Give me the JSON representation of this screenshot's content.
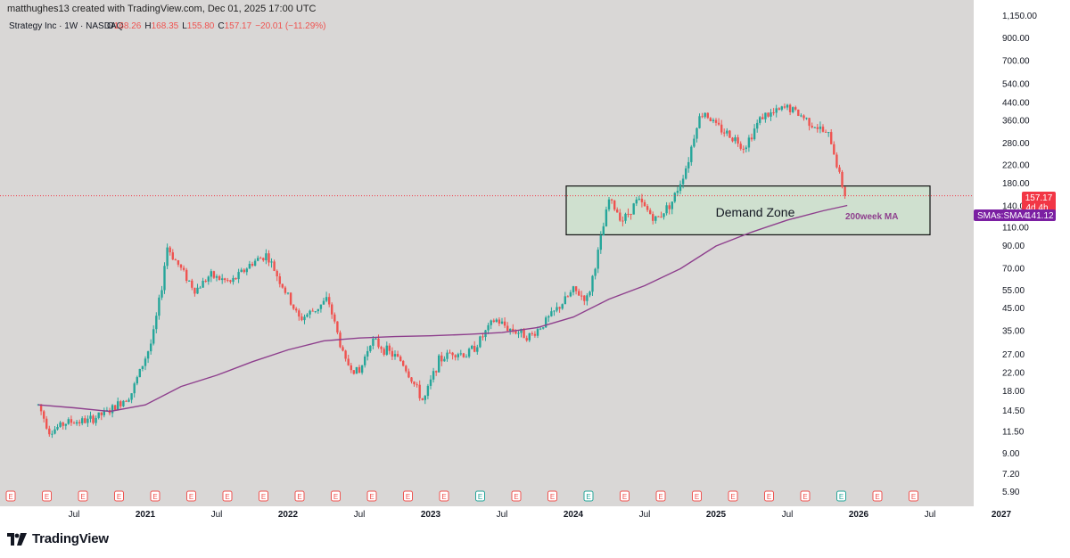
{
  "attribution": "matthughes13 created with TradingView.com, Dec 01, 2025 17:00 UTC",
  "footer": {
    "brand": "TradingView"
  },
  "colors": {
    "background": "#ffffff",
    "plot_bg": "#d9d7d6",
    "up": "#26a69a",
    "down": "#ef5350",
    "sma": "#8e3f8d",
    "last_price_bg": "#f23645",
    "sma_badge_bg": "#7b1fa2",
    "zone_fill": "#cfe0cf",
    "zone_border": "#111111"
  },
  "legend": {
    "title": "Strategy Inc · 1W · NASDAQ",
    "o_label": "O",
    "o": "168.26",
    "h_label": "H",
    "h": "168.35",
    "l_label": "L",
    "l": "155.80",
    "c_label": "C",
    "c": "157.17",
    "change": "−20.01 (−11.29%)"
  },
  "badges": {
    "last_price": "157.17",
    "countdown": "4d 4h",
    "sma_label": "SMAs:SMA4",
    "sma_value": "141.12"
  },
  "annotations": {
    "zone_label": "Demand Zone",
    "ma_label": "200week MA"
  },
  "chart_data": {
    "type": "candlestick",
    "symbol": "Strategy Inc",
    "interval": "1W",
    "exchange": "NASDAQ",
    "scale": "log",
    "y_ticks": [
      "1,150.00",
      "900.00",
      "700.00",
      "540.00",
      "440.00",
      "360.00",
      "280.00",
      "220.00",
      "180.00",
      "140.00",
      "110.00",
      "90.00",
      "70.00",
      "55.00",
      "45.00",
      "35.00",
      "27.00",
      "22.00",
      "18.00",
      "14.50",
      "11.50",
      "9.00",
      "7.20",
      "5.90"
    ],
    "x_ticks": [
      "Jul",
      "2021",
      "Jul",
      "2022",
      "Jul",
      "2023",
      "Jul",
      "2024",
      "Jul",
      "2025",
      "Jul",
      "2026",
      "Jul",
      "2027"
    ],
    "bold_x_ticks": [
      "2021",
      "2022",
      "2023",
      "2024",
      "2025",
      "2026",
      "2027"
    ],
    "x_range": [
      2020.25,
      2027.25
    ],
    "ylim": [
      5.5,
      1250
    ],
    "demand_zone": {
      "start": 2023.95,
      "end": 2026.5,
      "low": 102,
      "high": 175
    },
    "last_price": 157.17,
    "sma_200w": [
      [
        2020.25,
        15.5
      ],
      [
        2020.5,
        15.0
      ],
      [
        2020.75,
        14.4
      ],
      [
        2021.0,
        15.5
      ],
      [
        2021.25,
        19.0
      ],
      [
        2021.5,
        21.5
      ],
      [
        2021.75,
        25.0
      ],
      [
        2022.0,
        28.5
      ],
      [
        2022.25,
        31.5
      ],
      [
        2022.5,
        32.5
      ],
      [
        2022.75,
        33.0
      ],
      [
        2023.0,
        33.3
      ],
      [
        2023.25,
        33.8
      ],
      [
        2023.5,
        34.5
      ],
      [
        2023.75,
        36.5
      ],
      [
        2024.0,
        41.0
      ],
      [
        2024.25,
        50.0
      ],
      [
        2024.5,
        58.0
      ],
      [
        2024.75,
        70.0
      ],
      [
        2025.0,
        90.0
      ],
      [
        2025.25,
        105.0
      ],
      [
        2025.5,
        120.0
      ],
      [
        2025.75,
        133.0
      ],
      [
        2025.92,
        141.12
      ]
    ],
    "price_path": [
      [
        2020.25,
        15.5
      ],
      [
        2020.33,
        11.5
      ],
      [
        2020.45,
        12.8
      ],
      [
        2020.6,
        13.0
      ],
      [
        2020.75,
        14.5
      ],
      [
        2020.9,
        17.5
      ],
      [
        2021.05,
        32.0
      ],
      [
        2021.12,
        60.0
      ],
      [
        2021.15,
        90.0
      ],
      [
        2021.22,
        75.0
      ],
      [
        2021.35,
        55.0
      ],
      [
        2021.45,
        65.0
      ],
      [
        2021.6,
        60.0
      ],
      [
        2021.75,
        75.0
      ],
      [
        2021.85,
        82.0
      ],
      [
        2021.95,
        60.0
      ],
      [
        2022.08,
        40.0
      ],
      [
        2022.2,
        45.0
      ],
      [
        2022.28,
        50.0
      ],
      [
        2022.4,
        25.0
      ],
      [
        2022.5,
        22.0
      ],
      [
        2022.58,
        32.0
      ],
      [
        2022.7,
        28.0
      ],
      [
        2022.8,
        25.0
      ],
      [
        2022.95,
        16.0
      ],
      [
        2023.05,
        25.0
      ],
      [
        2023.15,
        28.0
      ],
      [
        2023.25,
        27.0
      ],
      [
        2023.32,
        30.0
      ],
      [
        2023.45,
        40.0
      ],
      [
        2023.55,
        36.0
      ],
      [
        2023.7,
        33.0
      ],
      [
        2023.85,
        42.0
      ],
      [
        2024.0,
        55.0
      ],
      [
        2024.1,
        50.0
      ],
      [
        2024.18,
        88.0
      ],
      [
        2024.25,
        150.0
      ],
      [
        2024.35,
        120.0
      ],
      [
        2024.45,
        150.0
      ],
      [
        2024.58,
        120.0
      ],
      [
        2024.7,
        150.0
      ],
      [
        2024.8,
        225.0
      ],
      [
        2024.87,
        360.0
      ],
      [
        2024.92,
        400.0
      ],
      [
        2025.0,
        340.0
      ],
      [
        2025.12,
        300.0
      ],
      [
        2025.2,
        270.0
      ],
      [
        2025.32,
        380.0
      ],
      [
        2025.4,
        390.0
      ],
      [
        2025.5,
        420.0
      ],
      [
        2025.6,
        380.0
      ],
      [
        2025.7,
        340.0
      ],
      [
        2025.8,
        300.0
      ],
      [
        2025.88,
        180.0
      ],
      [
        2025.92,
        157.17
      ]
    ]
  },
  "event_markers": [
    "E",
    "E",
    "E",
    "E",
    "E",
    "E",
    "E",
    "E",
    "E",
    "E",
    "E",
    "E",
    "E",
    "E",
    "E",
    "E",
    "E",
    "E",
    "E",
    "E",
    "E",
    "E",
    "E",
    "E",
    "E",
    "E"
  ]
}
